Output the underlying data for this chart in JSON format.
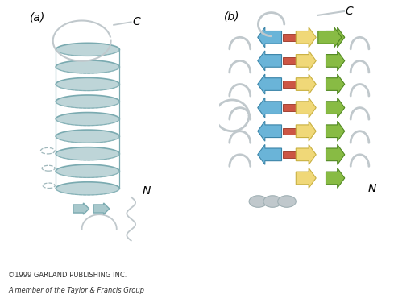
{
  "bg_color": "#ffffff",
  "label_a": "(a)",
  "label_b": "(b)",
  "helix_fill": "#a8c8cc",
  "helix_edge": "#7aaab0",
  "helix_light": "#d0e4e8",
  "loop_color": "#c0c8cc",
  "loop_edge": "#a0b0b4",
  "arrow_blue": "#6ab4d8",
  "arrow_blue_edge": "#3a84a8",
  "arrow_yellow": "#f0d878",
  "arrow_yellow_edge": "#c8b040",
  "arrow_green": "#88bb44",
  "arrow_green_edge": "#508820",
  "arrow_red": "#cc5544",
  "arrow_red_edge": "#993322",
  "dashed_color": "#a0b8bc",
  "copyright_line1": "©1999 GARLAND PUBLISHING INC.",
  "copyright_line2": "A member of the Taylor & Francis Group"
}
